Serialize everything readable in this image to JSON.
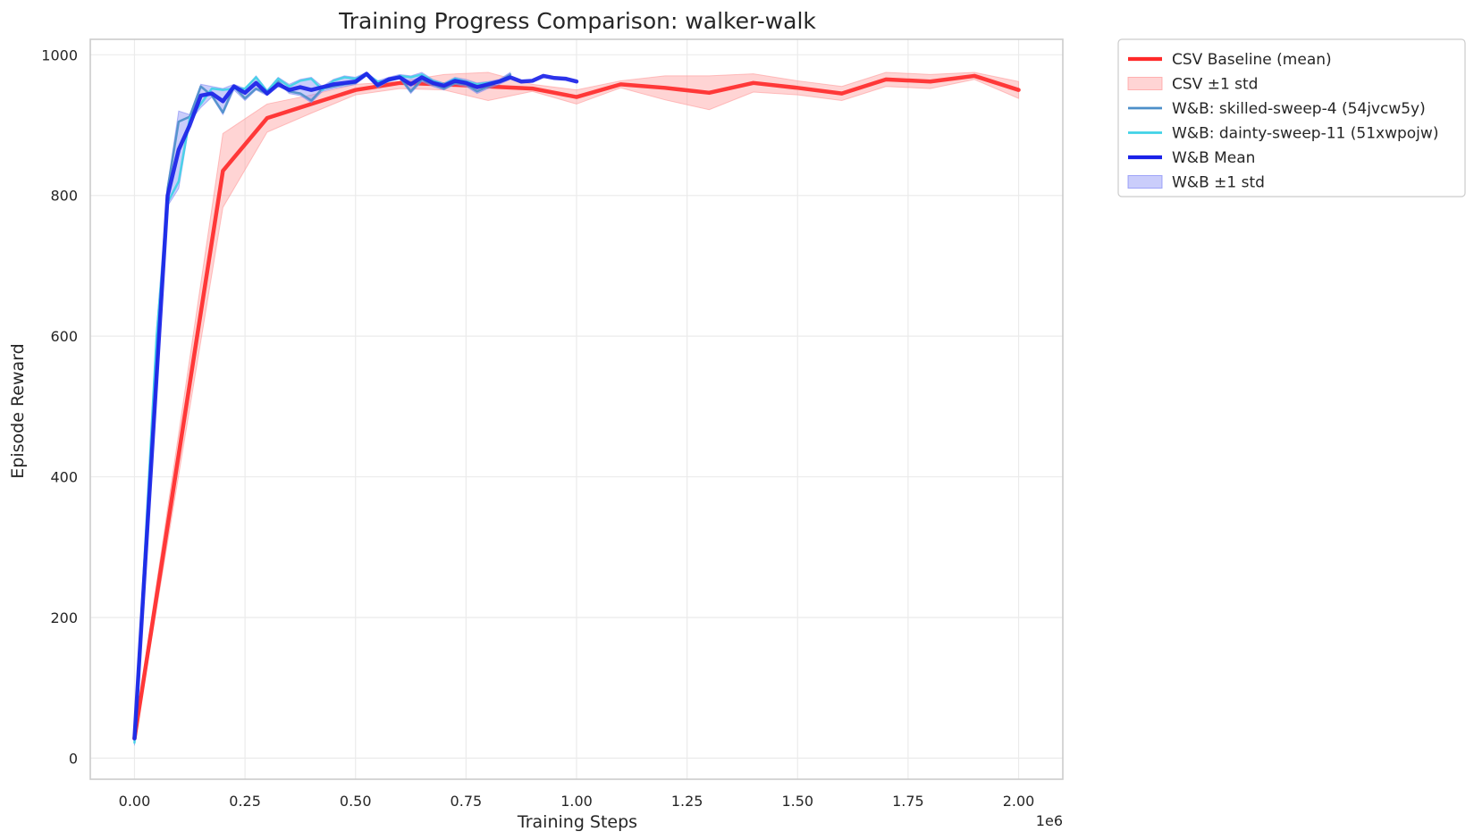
{
  "chart_data": {
    "type": "line",
    "title": "Training Progress Comparison: walker-walk",
    "xlabel": "Training Steps",
    "ylabel": "Episode Reward",
    "x_offset_label": "1e6",
    "xlim": [
      -0.1,
      2.1
    ],
    "ylim": [
      -30,
      1022
    ],
    "x_ticks": [
      0.0,
      0.25,
      0.5,
      0.75,
      1.0,
      1.25,
      1.5,
      1.75,
      2.0
    ],
    "x_tick_labels": [
      "0.00",
      "0.25",
      "0.50",
      "0.75",
      "1.00",
      "1.25",
      "1.50",
      "1.75",
      "2.00"
    ],
    "y_ticks": [
      0,
      200,
      400,
      600,
      800,
      1000
    ],
    "y_tick_labels": [
      "0",
      "200",
      "400",
      "600",
      "800",
      "1000"
    ],
    "grid": true,
    "legend_position": "outside-top-right",
    "series": [
      {
        "name": "CSV Baseline (mean)",
        "kind": "line",
        "color": "#ff2a2a",
        "x": [
          0.0,
          0.2,
          0.3,
          0.4,
          0.5,
          0.6,
          0.7,
          0.8,
          0.9,
          1.0,
          1.1,
          1.2,
          1.3,
          1.4,
          1.5,
          1.6,
          1.7,
          1.8,
          1.9,
          2.0
        ],
        "y": [
          28,
          835,
          910,
          930,
          950,
          960,
          958,
          955,
          952,
          940,
          958,
          953,
          946,
          960,
          953,
          945,
          965,
          962,
          970,
          950
        ]
      },
      {
        "name": "CSV ±1 std",
        "kind": "band",
        "color": "#ff9999",
        "x": [
          0.0,
          0.2,
          0.3,
          0.4,
          0.5,
          0.6,
          0.7,
          0.8,
          0.9,
          1.0,
          1.1,
          1.2,
          1.3,
          1.4,
          1.5,
          1.6,
          1.7,
          1.8,
          1.9,
          2.0
        ],
        "upper": [
          35,
          888,
          930,
          943,
          958,
          962,
          972,
          975,
          958,
          950,
          963,
          970,
          970,
          973,
          963,
          955,
          975,
          972,
          975,
          962
        ],
        "lower": [
          22,
          783,
          890,
          917,
          943,
          952,
          950,
          935,
          948,
          930,
          953,
          936,
          922,
          947,
          943,
          935,
          955,
          952,
          965,
          938
        ]
      },
      {
        "name": "W&B: skilled-sweep-4 (54jvcw5y)",
        "kind": "line",
        "color": "#4c8fc9",
        "x": [
          0.0,
          0.05,
          0.075,
          0.1,
          0.125,
          0.15,
          0.175,
          0.2,
          0.225,
          0.25,
          0.275,
          0.3,
          0.325,
          0.35,
          0.375,
          0.4,
          0.425,
          0.45,
          0.475,
          0.5,
          0.525,
          0.55,
          0.575,
          0.6,
          0.625,
          0.65,
          0.675,
          0.7,
          0.725,
          0.75,
          0.775,
          0.8,
          0.825,
          0.85
        ],
        "y": [
          28,
          550,
          810,
          905,
          912,
          955,
          942,
          918,
          955,
          938,
          952,
          945,
          962,
          948,
          945,
          935,
          952,
          955,
          958,
          960,
          972,
          955,
          965,
          968,
          948,
          965,
          958,
          952,
          960,
          958,
          948,
          955,
          962,
          972
        ]
      },
      {
        "name": "W&B: dainty-sweep-11 (51xwpojw)",
        "kind": "line",
        "color": "#40d2e6",
        "x": [
          0.0,
          0.05,
          0.075,
          0.1,
          0.125,
          0.15,
          0.175,
          0.2,
          0.225,
          0.25,
          0.275,
          0.3,
          0.325,
          0.35,
          0.375,
          0.4,
          0.425,
          0.45,
          0.475,
          0.5,
          0.525,
          0.55,
          0.575,
          0.6,
          0.625,
          0.65,
          0.675,
          0.7,
          0.725,
          0.75,
          0.775,
          0.8,
          0.825,
          0.85
        ],
        "y": [
          22,
          600,
          790,
          820,
          910,
          930,
          952,
          950,
          952,
          952,
          968,
          948,
          966,
          955,
          963,
          966,
          950,
          963,
          968,
          966,
          972,
          962,
          963,
          970,
          968,
          972,
          963,
          958,
          966,
          962,
          958,
          960,
          962,
          968
        ]
      },
      {
        "name": "W&B Mean",
        "kind": "line",
        "color": "#1a22e8",
        "x": [
          0.0,
          0.075,
          0.1,
          0.125,
          0.15,
          0.175,
          0.2,
          0.225,
          0.25,
          0.275,
          0.3,
          0.325,
          0.35,
          0.375,
          0.4,
          0.425,
          0.45,
          0.475,
          0.5,
          0.525,
          0.55,
          0.575,
          0.6,
          0.625,
          0.65,
          0.675,
          0.7,
          0.725,
          0.75,
          0.775,
          0.8,
          0.825,
          0.85,
          0.875,
          0.9,
          0.925,
          0.95,
          0.975,
          1.0
        ],
        "y": [
          28,
          800,
          865,
          900,
          942,
          945,
          934,
          955,
          946,
          960,
          945,
          958,
          950,
          954,
          950,
          954,
          958,
          960,
          962,
          973,
          957,
          965,
          968,
          958,
          968,
          960,
          956,
          963,
          960,
          954,
          958,
          962,
          968,
          962,
          963,
          970,
          967,
          966,
          962
        ]
      },
      {
        "name": "W&B ±1 std",
        "kind": "band",
        "color": "#8088f5",
        "x": [
          0.0,
          0.05,
          0.075,
          0.1,
          0.125,
          0.15,
          0.175,
          0.2,
          0.225,
          0.25,
          0.275,
          0.3,
          0.325,
          0.35,
          0.375,
          0.4,
          0.425,
          0.45,
          0.475,
          0.5,
          0.525,
          0.55,
          0.575,
          0.6,
          0.625,
          0.65,
          0.675,
          0.7,
          0.725,
          0.75,
          0.775,
          0.8,
          0.825,
          0.85
        ],
        "upper": [
          34,
          610,
          815,
          920,
          915,
          958,
          955,
          952,
          958,
          952,
          970,
          950,
          968,
          958,
          965,
          968,
          955,
          965,
          970,
          968,
          975,
          963,
          968,
          972,
          970,
          975,
          965,
          960,
          968,
          965,
          960,
          962,
          965,
          975
        ],
        "lower": [
          18,
          540,
          785,
          810,
          905,
          925,
          940,
          915,
          950,
          935,
          950,
          942,
          960,
          945,
          942,
          932,
          948,
          952,
          955,
          958,
          970,
          953,
          962,
          966,
          945,
          962,
          955,
          950,
          958,
          955,
          945,
          952,
          958,
          965
        ]
      }
    ],
    "legend": [
      {
        "label": "CSV Baseline (mean)",
        "kind": "line",
        "color": "#ff2a2a"
      },
      {
        "label": "CSV ±1 std",
        "kind": "band",
        "color": "#ff9999"
      },
      {
        "label": "W&B: skilled-sweep-4 (54jvcw5y)",
        "kind": "line-thin",
        "color": "#4c8fc9"
      },
      {
        "label": "W&B: dainty-sweep-11 (51xwpojw)",
        "kind": "line-thin",
        "color": "#40d2e6"
      },
      {
        "label": "W&B Mean",
        "kind": "line",
        "color": "#1a22e8"
      },
      {
        "label": "W&B ±1 std",
        "kind": "band",
        "color": "#8088f5"
      }
    ]
  }
}
